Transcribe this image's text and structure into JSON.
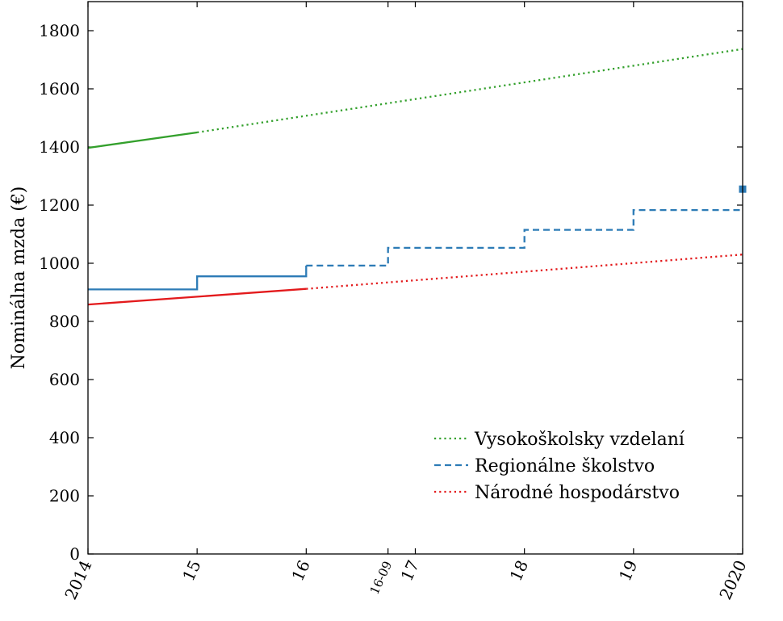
{
  "chart_data": {
    "type": "line",
    "xlabel": "",
    "ylabel": "Nominálna mzda (€)",
    "ylim": [
      0,
      1900
    ],
    "xlim": [
      2014,
      2020
    ],
    "grid": false,
    "legend_position": "bottom-right",
    "y_ticks": [
      0,
      200,
      400,
      600,
      800,
      1000,
      1200,
      1400,
      1600,
      1800
    ],
    "x_ticks": [
      {
        "value": 2014,
        "label": "2014"
      },
      {
        "value": 2015,
        "label": "15"
      },
      {
        "value": 2016,
        "label": "16"
      },
      {
        "value": 2016.75,
        "label": "16-09"
      },
      {
        "value": 2017,
        "label": "17"
      },
      {
        "value": 2018,
        "label": "18"
      },
      {
        "value": 2019,
        "label": "19"
      },
      {
        "value": 2020,
        "label": "2020"
      }
    ],
    "series": [
      {
        "name": "Vysokoškolsky vzdelaní",
        "color": "#33a02c",
        "legend_style": "dotted",
        "segments": [
          {
            "style": "solid",
            "x": [
              2014,
              2015
            ],
            "y": [
              1397,
              1450
            ]
          },
          {
            "style": "dotted",
            "x": [
              2015,
              2020
            ],
            "y": [
              1450,
              1737
            ]
          }
        ]
      },
      {
        "name": "Regionálne školstvo",
        "color": "#2c7bb6",
        "legend_style": "dashed",
        "segments": [
          {
            "style": "solid",
            "step": true,
            "x": [
              2014,
              2015,
              2015,
              2016,
              2016
            ],
            "y": [
              910,
              910,
              955,
              955,
              992
            ]
          },
          {
            "style": "dashed",
            "step": true,
            "x": [
              2016,
              2016.75,
              2016.75,
              2018,
              2018,
              2019,
              2019,
              2020
            ],
            "y": [
              992,
              992,
              1053,
              1053,
              1115,
              1115,
              1183,
              1183
            ]
          }
        ],
        "markers": [
          {
            "x": 2020,
            "y": 1255,
            "shape": "square"
          }
        ]
      },
      {
        "name": "Národné hospodárstvo",
        "color": "#e31a1c",
        "legend_style": "dotted",
        "segments": [
          {
            "style": "solid",
            "x": [
              2014,
              2016
            ],
            "y": [
              858,
              912
            ]
          },
          {
            "style": "dotted",
            "x": [
              2016,
              2020
            ],
            "y": [
              912,
              1030
            ]
          }
        ]
      }
    ]
  }
}
